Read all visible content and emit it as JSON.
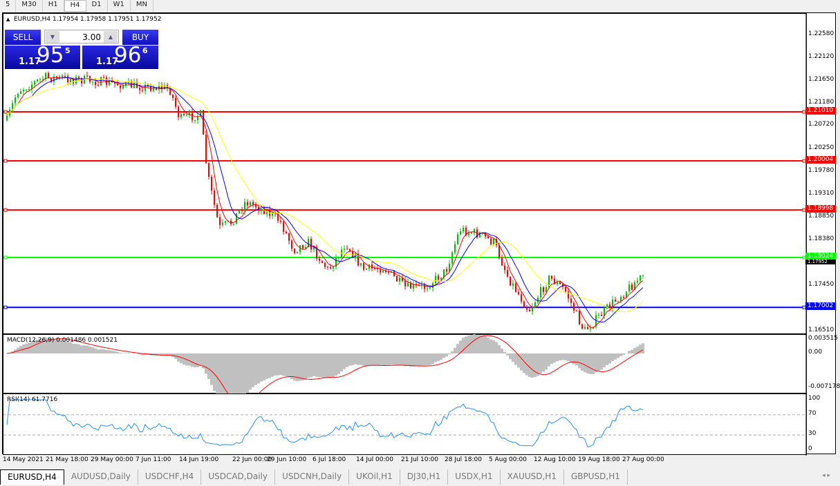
{
  "timeframes": [
    "5",
    "M30",
    "H1",
    "H4",
    "D1",
    "W1",
    "MN"
  ],
  "active_timeframe": "H4",
  "chart": {
    "title": "EURUSD,H4  1.17954 1.17958 1.17951 1.17952",
    "symbol": "EURUSD",
    "period": "H4",
    "ohlc": [
      1.17954,
      1.17958,
      1.17951,
      1.17952
    ],
    "price_ticks": [
      "1.22580",
      "1.22120",
      "1.21650",
      "1.21180",
      "1.20720",
      "1.20250",
      "1.19780",
      "1.19310",
      "1.18850",
      "1.18380",
      "1.17450",
      "1.16510"
    ],
    "levels": [
      {
        "value": "1.21010",
        "color": "#ff0000"
      },
      {
        "value": "1.20004",
        "color": "#ff0000"
      },
      {
        "value": "1.18998",
        "color": "#ff0000"
      },
      {
        "value": "1.18024",
        "color": "#00ff00"
      },
      {
        "value": "1.17002",
        "color": "#0000ff"
      }
    ],
    "current_price": "1.17952"
  },
  "trade_panel": {
    "sell_label": "SELL",
    "buy_label": "BUY",
    "lot": "3.00",
    "sell_small": "1.17",
    "sell_main": "95",
    "sell_sup": "5",
    "buy_small": "1.17",
    "buy_main": "96",
    "buy_sup": "6"
  },
  "macd": {
    "title": "MACD(12,26,9) 0.001486 0.001521",
    "ticks": [
      "0.003515",
      "0.00",
      "-0.007178"
    ]
  },
  "rsi": {
    "title": "RSI(14) 61.7716",
    "ticks": [
      "100",
      "70",
      "30",
      "0"
    ]
  },
  "time_labels": [
    "14 May 2021",
    "21 May 18:00",
    "29 May 00:00",
    "7 Jun 11:00",
    "14 Jun 19:00",
    "22 Jun 00:00",
    "29 Jun 10:00",
    "6 Jul 18:00",
    "14 Jul 00:00",
    "21 Jul 10:00",
    "28 Jul 18:00",
    "5 Aug 00:00",
    "12 Aug 10:00",
    "19 Aug 18:00",
    "27 Aug 00:00"
  ],
  "tabs": [
    "EURUSD,H4",
    "AUDUSD,Daily",
    "USDCHF,H4",
    "USDCAD,Daily",
    "USDCNH,Daily",
    "UKOil,H1",
    "DJ30,H1",
    "USDX,H1",
    "XAUUSD,H1",
    "GBPUSD,H1"
  ],
  "colors": {
    "bull": "#00c000",
    "bear": "#ff0000",
    "ma_fast": "#ff0000",
    "ma_mid": "#0000ff",
    "ma_slow": "#ffff00",
    "rsi": "#1e90ff",
    "panel": "#1010c0"
  }
}
